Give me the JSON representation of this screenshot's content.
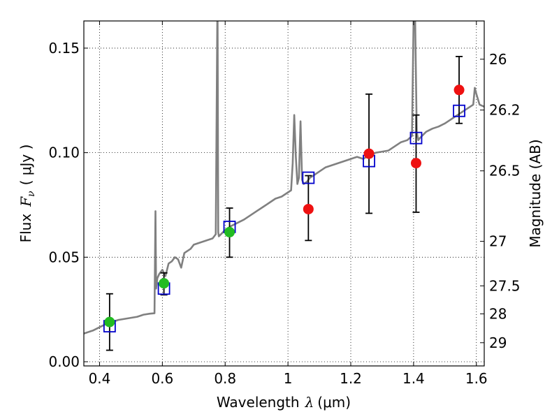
{
  "chart_data": {
    "type": "scatter",
    "xlabel_prefix": "Wavelength",
    "xlabel_symbol": "λ",
    "xlabel_unit": "(μm)",
    "ylabel_prefix": "Flux",
    "ylabel_symbol": "F",
    "ylabel_subscript": "ν",
    "ylabel_unit": "( μJy )",
    "y2label": "Magnitude (AB)",
    "xlim": [
      0.35,
      1.625
    ],
    "ylim": [
      -0.002,
      0.163
    ],
    "grid": true,
    "x_ticks": [
      0.4,
      0.6,
      0.8,
      1.0,
      1.2,
      1.4,
      1.6
    ],
    "x_tick_labels": [
      "0.4",
      "0.6",
      "0.8",
      "1",
      "1.2",
      "1.4",
      "1.6"
    ],
    "y_ticks": [
      0.0,
      0.05,
      0.1,
      0.15
    ],
    "y_tick_labels": [
      "0.00",
      "0.05",
      "0.10",
      "0.15"
    ],
    "y2_ticks": [
      {
        "label": "26",
        "flux": 0.1447
      },
      {
        "label": "26.2",
        "flux": 0.1204
      },
      {
        "label": "26.5",
        "flux": 0.0913
      },
      {
        "label": "27",
        "flux": 0.0576
      },
      {
        "label": "27.5",
        "flux": 0.0363
      },
      {
        "label": "28",
        "flux": 0.0229
      },
      {
        "label": "29",
        "flux": 0.0091
      }
    ],
    "colors": {
      "model": "#808080",
      "model_bands": "#0000cc",
      "obs_hst": "#22bb22",
      "obs_ir": "#ee1111",
      "errorbar": "#000000"
    },
    "model_spectrum": {
      "x": [
        0.35,
        0.36,
        0.38,
        0.4,
        0.42,
        0.44,
        0.46,
        0.48,
        0.5,
        0.52,
        0.54,
        0.56,
        0.575,
        0.578,
        0.58,
        0.584,
        0.59,
        0.6,
        0.61,
        0.62,
        0.63,
        0.64,
        0.65,
        0.66,
        0.67,
        0.68,
        0.69,
        0.7,
        0.72,
        0.74,
        0.76,
        0.77,
        0.775,
        0.776,
        0.778,
        0.78,
        0.79,
        0.8,
        0.82,
        0.84,
        0.86,
        0.88,
        0.9,
        0.92,
        0.94,
        0.96,
        0.98,
        1.0,
        1.01,
        1.015,
        1.02,
        1.025,
        1.03,
        1.035,
        1.04,
        1.045,
        1.05,
        1.06,
        1.07,
        1.08,
        1.1,
        1.12,
        1.14,
        1.16,
        1.18,
        1.2,
        1.22,
        1.24,
        1.26,
        1.28,
        1.3,
        1.32,
        1.34,
        1.36,
        1.38,
        1.395,
        1.4,
        1.405,
        1.41,
        1.415,
        1.42,
        1.44,
        1.46,
        1.48,
        1.5,
        1.52,
        1.54,
        1.56,
        1.58,
        1.59,
        1.595,
        1.6,
        1.61,
        1.625
      ],
      "y": [
        0.0135,
        0.014,
        0.015,
        0.0165,
        0.018,
        0.019,
        0.02,
        0.0205,
        0.021,
        0.0215,
        0.0225,
        0.023,
        0.0232,
        0.072,
        0.035,
        0.04,
        0.042,
        0.044,
        0.041,
        0.047,
        0.048,
        0.05,
        0.049,
        0.045,
        0.052,
        0.053,
        0.054,
        0.056,
        0.057,
        0.058,
        0.059,
        0.061,
        0.164,
        0.164,
        0.062,
        0.06,
        0.0615,
        0.063,
        0.065,
        0.0665,
        0.068,
        0.07,
        0.072,
        0.074,
        0.076,
        0.078,
        0.079,
        0.081,
        0.082,
        0.095,
        0.118,
        0.098,
        0.085,
        0.088,
        0.115,
        0.087,
        0.085,
        0.086,
        0.088,
        0.089,
        0.091,
        0.093,
        0.094,
        0.095,
        0.096,
        0.097,
        0.098,
        0.097,
        0.099,
        0.1,
        0.1005,
        0.101,
        0.103,
        0.105,
        0.106,
        0.108,
        0.164,
        0.164,
        0.11,
        0.106,
        0.107,
        0.11,
        0.1115,
        0.1125,
        0.114,
        0.116,
        0.118,
        0.12,
        0.122,
        0.123,
        0.131,
        0.128,
        0.123,
        0.122
      ]
    },
    "model_band_points": {
      "x": [
        0.432,
        0.605,
        0.814,
        1.065,
        1.258,
        1.408,
        1.545
      ],
      "y": [
        0.017,
        0.035,
        0.0645,
        0.088,
        0.096,
        0.107,
        0.12
      ]
    },
    "observed_hst": {
      "x": [
        0.432,
        0.605,
        0.814
      ],
      "y": [
        0.019,
        0.0375,
        0.062
      ],
      "yerr_low": [
        0.0055,
        0.032,
        0.05
      ],
      "yerr_high": [
        0.0325,
        0.0425,
        0.0735
      ]
    },
    "observed_ir": {
      "x": [
        1.065,
        1.258,
        1.408,
        1.545
      ],
      "y": [
        0.073,
        0.0995,
        0.095,
        0.13
      ],
      "yerr_low": [
        0.058,
        0.071,
        0.0715,
        0.114
      ],
      "yerr_high": [
        0.089,
        0.128,
        0.118,
        0.146
      ]
    }
  }
}
